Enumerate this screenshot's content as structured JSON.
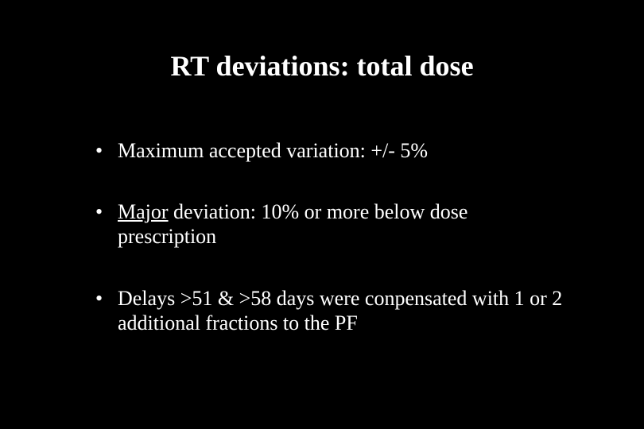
{
  "slide": {
    "background_color": "#000000",
    "text_color": "#ffffff",
    "font_family": "Times New Roman",
    "title": "RT deviations: total dose",
    "title_fontsize": 36,
    "title_bold": true,
    "bullet_fontsize": 26,
    "bullets": [
      {
        "prefix": "",
        "underlined": "",
        "rest": "Maximum accepted variation: +/- 5%"
      },
      {
        "prefix": "",
        "underlined": "Major",
        "rest": " deviation: 10% or more below dose prescription"
      },
      {
        "prefix": "",
        "underlined": "",
        "rest": "Delays >51 & >58 days were conpensated with 1 or 2 additional fractions to the PF"
      }
    ]
  }
}
